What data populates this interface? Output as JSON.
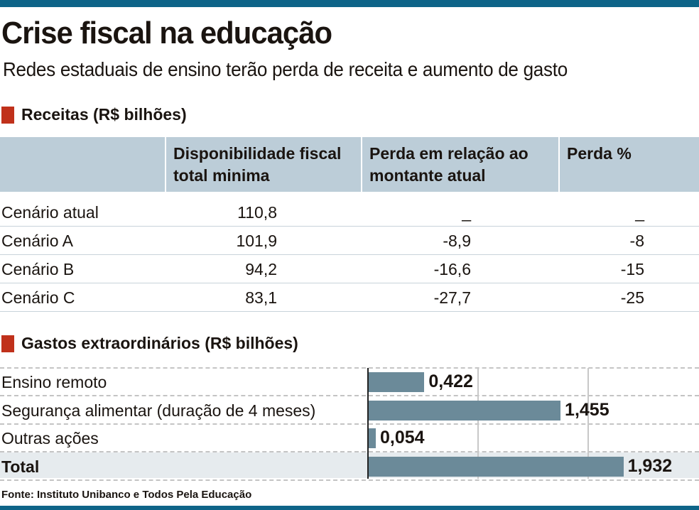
{
  "title": "Crise fiscal na educação",
  "subtitle": "Redes estaduais de ensino terão perda de receita e aumento de gasto",
  "receitas": {
    "section_title": "Receitas (R$ bilhões)",
    "headers": [
      "",
      "Disponibilidade fiscal total minima",
      "Perda em relação ao montante atual",
      "Perda %"
    ],
    "rows": [
      [
        "Cenário atual",
        "110,8",
        "_",
        "_"
      ],
      [
        "Cenário A",
        "101,9",
        "-8,9",
        "-8"
      ],
      [
        "Cenário B",
        "94,2",
        "-16,6",
        "-15"
      ],
      [
        "Cenário C",
        "83,1",
        "-27,7",
        "-25"
      ]
    ]
  },
  "chart_data": {
    "type": "bar",
    "title": "Gastos extraordinários (R$ bilhões)",
    "categories": [
      "Ensino remoto",
      "Segurança alimentar (duração de 4 meses)",
      "Outras ações",
      "Total"
    ],
    "values": [
      0.422,
      1.455,
      0.054,
      1.932
    ],
    "labels": [
      "0,422",
      "1,455",
      "0,054",
      "1,932"
    ],
    "xlim": [
      0,
      2.5
    ],
    "orientation": "horizontal",
    "bar_color": "#6b8a99"
  },
  "source": "Fonte: Instituto Unibanco e Todos Pela Educação"
}
